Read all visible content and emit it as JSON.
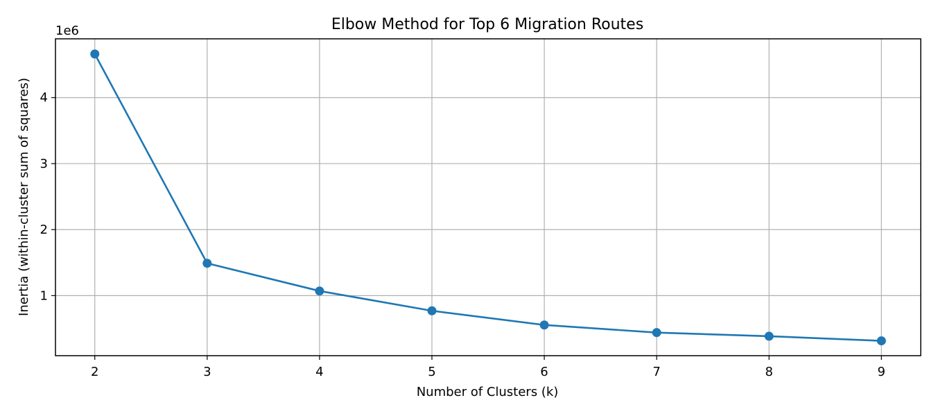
{
  "chart_data": {
    "type": "line",
    "title": "Elbow Method for Top 6 Migration Routes",
    "xlabel": "Number of Clusters (k)",
    "ylabel": "Inertia (within-cluster sum of squares)",
    "y_offset_label": "1e6",
    "x": [
      2,
      3,
      4,
      5,
      6,
      7,
      8,
      9
    ],
    "series": [
      {
        "values": [
          4660000,
          1490000,
          1070000,
          770000,
          555000,
          440000,
          385000,
          315000
        ]
      }
    ],
    "x_ticks": [
      2,
      3,
      4,
      5,
      6,
      7,
      8,
      9
    ],
    "y_ticks": [
      1,
      2,
      3,
      4
    ],
    "y_tick_scale": 1000000,
    "xlim": [
      1.65,
      9.35
    ],
    "ylim": [
      90000,
      4890000
    ],
    "grid": true,
    "marker": "circle",
    "line_color": "#1f77b4",
    "grid_color": "#b0b0b0"
  }
}
